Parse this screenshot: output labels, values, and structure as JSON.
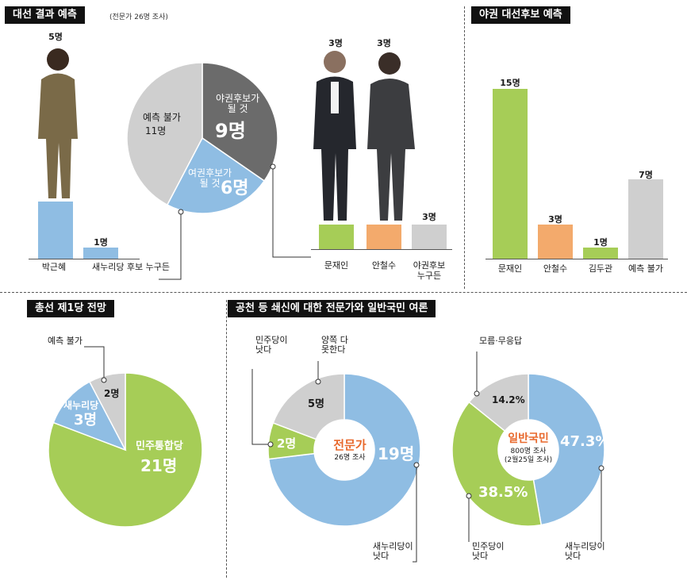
{
  "panel1": {
    "title": "대선 결과 예측",
    "note": "(전문가 26명 조사)",
    "bars": [
      {
        "category": "박근혜",
        "count_label": "5명",
        "value": 5
      },
      {
        "category": "새누리당 후보 누구든",
        "count_label": "1명",
        "value": 1
      },
      {
        "category": "문재인",
        "count_label": "3명",
        "value": 3
      },
      {
        "category": "안철수",
        "count_label": "3명",
        "value": 3
      },
      {
        "category": "야권후보\n누구든",
        "count_label": "3명",
        "value": 3
      }
    ],
    "pie_labels": {
      "unknown_label": "예측 불가",
      "unknown_count": "11명",
      "opp_label": "야권후보가\n될 것",
      "opp_count": "9명",
      "ruling_label": "여권후보가\n될 것",
      "ruling_count": "6명"
    }
  },
  "panel2": {
    "title": "야권 대선후보 예측",
    "bars": [
      {
        "category": "문재인",
        "count_label": "15명",
        "value": 15
      },
      {
        "category": "안철수",
        "count_label": "3명",
        "value": 3
      },
      {
        "category": "김두관",
        "count_label": "1명",
        "value": 1
      },
      {
        "category": "예측 불가",
        "count_label": "7명",
        "value": 7
      }
    ]
  },
  "panel3": {
    "title": "총선 제1당 전망",
    "labels": {
      "unknown": "예측 불가",
      "unknown_count": "2명",
      "saenuri": "새누리당",
      "saenuri_count": "3명",
      "minju": "민주통합당",
      "minju_count": "21명"
    }
  },
  "panel4": {
    "title": "공천 등 쇄신에 대한 전문가와 일반국민 여론",
    "expert": {
      "center_title": "전문가",
      "center_sub": "26명 조사",
      "minju_better": "민주당이\n낫다",
      "both_not": "양쪽 다\n못한다",
      "saenuri_better": "새누리당이\n낫다",
      "n_both": "5명",
      "n_minju": "2명",
      "n_saenuri": "19명"
    },
    "public": {
      "center_title": "일반국민",
      "center_sub1": "800명 조사",
      "center_sub2": "(2월25일 조사)",
      "dont_know": "모름·무응답",
      "minju_better": "민주당이\n낫다",
      "saenuri_better": "새누리당이\n낫다",
      "p_dont_know": "14.2%",
      "p_minju": "38.5%",
      "p_saenuri": "47.3%"
    }
  },
  "colors": {
    "blue": "#8fbde3",
    "green": "#a6cd57",
    "orange": "#f3aa6c",
    "gray": "#cfcfcf",
    "dark": "#6b6b6b",
    "title_bg": "#111111",
    "accent_red": "#e8692d"
  },
  "chart_data": [
    {
      "type": "bar",
      "title": "대선 결과 예측",
      "categories": [
        "박근혜",
        "새누리당 후보 누구든",
        "문재인",
        "안철수",
        "야권후보 누구든"
      ],
      "values": [
        5,
        1,
        3,
        3,
        3
      ]
    },
    {
      "type": "pie",
      "title": "대선 결과 예측",
      "categories": [
        "야권후보가 될 것",
        "여권후보가 될 것",
        "예측 불가"
      ],
      "values": [
        9,
        6,
        11
      ]
    },
    {
      "type": "bar",
      "title": "야권 대선후보 예측",
      "categories": [
        "문재인",
        "안철수",
        "김두관",
        "예측 불가"
      ],
      "values": [
        15,
        3,
        1,
        7
      ]
    },
    {
      "type": "pie",
      "title": "총선 제1당 전망",
      "categories": [
        "민주통합당",
        "새누리당",
        "예측 불가"
      ],
      "values": [
        21,
        3,
        2
      ]
    },
    {
      "type": "pie",
      "title": "전문가",
      "categories": [
        "새누리당이 낫다",
        "민주당이 낫다",
        "양쪽 다 못한다"
      ],
      "values": [
        19,
        2,
        5
      ]
    },
    {
      "type": "pie",
      "title": "일반국민",
      "categories": [
        "새누리당이 낫다",
        "민주당이 낫다",
        "모름·무응답"
      ],
      "values": [
        47.3,
        38.5,
        14.2
      ]
    }
  ]
}
